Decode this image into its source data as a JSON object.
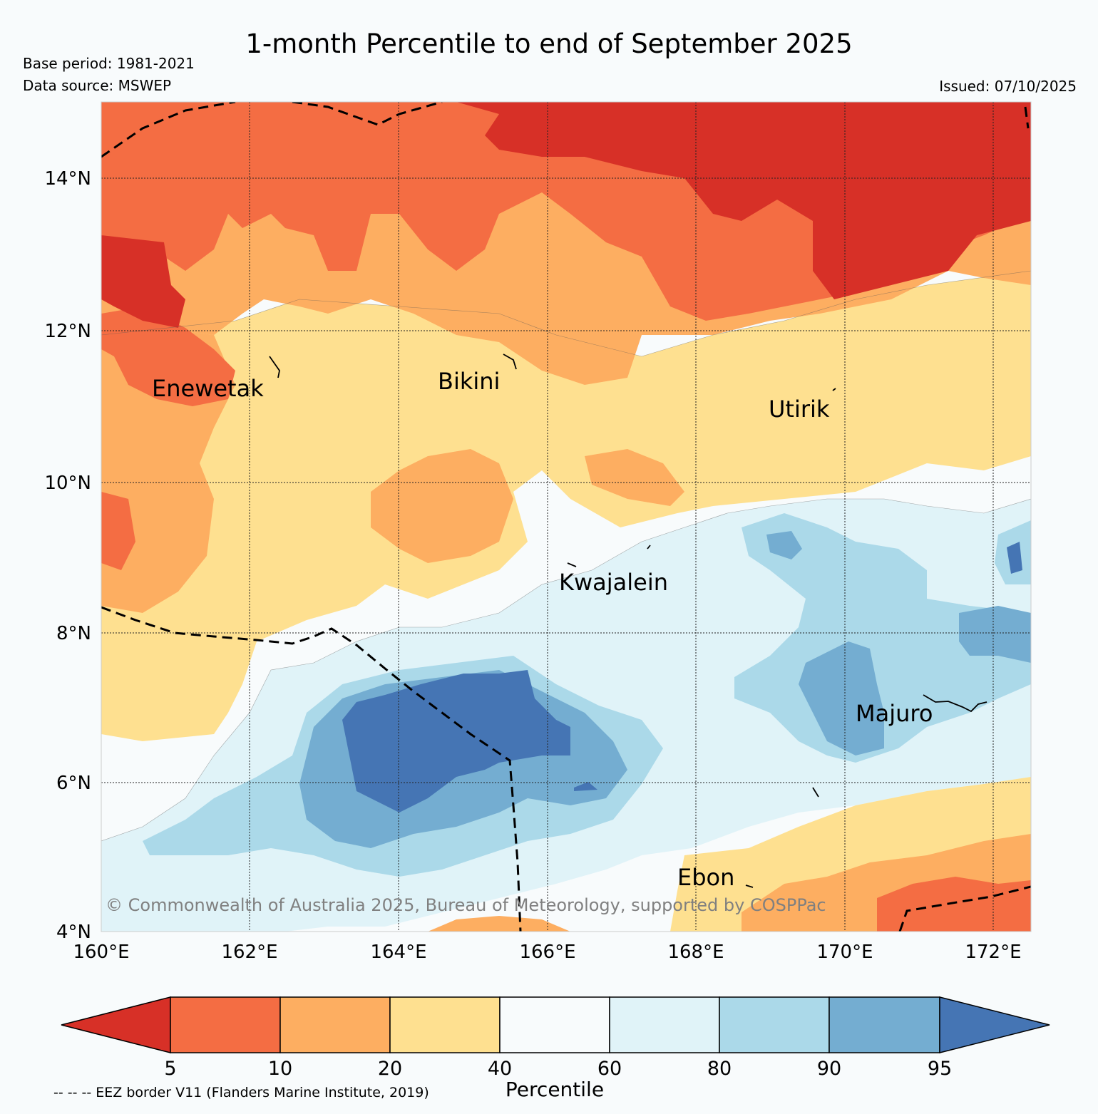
{
  "header": {
    "title": "1-month Percentile to end of September 2025",
    "base_period": "Base period: 1981-2021",
    "data_source": "Data source: MSWEP",
    "issued": "Issued: 07/10/2025"
  },
  "map": {
    "latitude_ticks": [
      "14°N",
      "12°N",
      "10°N",
      "8°N",
      "6°N",
      "4°N"
    ],
    "longitude_ticks": [
      "160°E",
      "162°E",
      "164°E",
      "166°E",
      "168°E",
      "170°E",
      "172°E"
    ],
    "places": [
      {
        "name": "Enewetak"
      },
      {
        "name": "Bikini"
      },
      {
        "name": "Utirik"
      },
      {
        "name": "Kwajalein"
      },
      {
        "name": "Majuro"
      },
      {
        "name": "Ebon"
      }
    ],
    "copyright": "© Commonwealth of Australia 2025, Bureau of Meteorology, supported by COSPPac"
  },
  "colorbar": {
    "title": "Percentile",
    "ticks": [
      "5",
      "10",
      "20",
      "40",
      "60",
      "80",
      "90",
      "95"
    ],
    "colors": {
      "below_5": "#d73027",
      "p5_10": "#f46d43",
      "p10_20": "#fdae61",
      "p20_40": "#fee090",
      "p40_60": "#f8fbfc",
      "p60_80": "#e0f3f8",
      "p80_90": "#abd9e9",
      "p90_95": "#74add1",
      "above_95": "#4575b4"
    }
  },
  "legend": {
    "eez_note": "-- -- -- EEZ border V11 (Flanders Marine Institute, 2019)"
  }
}
